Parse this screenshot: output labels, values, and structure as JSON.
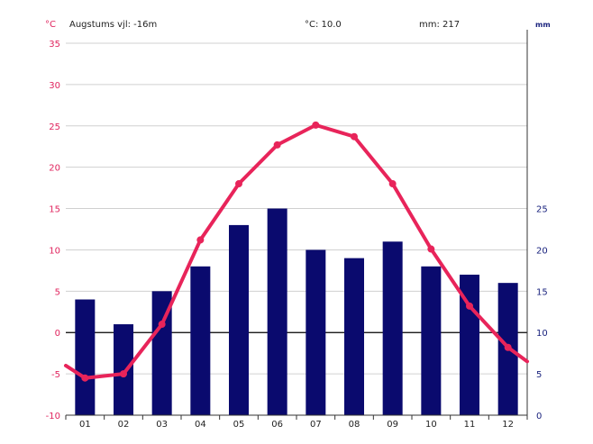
{
  "header": {
    "altitude": "Augstums vjl: -16m",
    "temp_avg": "°C: 10.0",
    "precip_total": "mm: 217",
    "unit_temp": "°C",
    "unit_precip": "mm"
  },
  "chart_data": {
    "type": "bar+line",
    "categories": [
      "01",
      "02",
      "03",
      "04",
      "05",
      "06",
      "07",
      "08",
      "09",
      "10",
      "11",
      "12"
    ],
    "series": [
      {
        "axis": "right",
        "unit": "mm",
        "kind": "bar",
        "color": "#0a0a6e",
        "values": [
          14,
          11,
          15,
          18,
          23,
          25,
          20,
          19,
          21,
          18,
          17,
          16
        ]
      },
      {
        "axis": "left",
        "unit": "°C",
        "kind": "line",
        "color": "#e8245a",
        "values": [
          -5.5,
          -5.0,
          1.0,
          11.2,
          18.0,
          22.7,
          25.1,
          23.7,
          18.0,
          10.1,
          3.2,
          -1.8
        ],
        "start_value": -4.0,
        "end_value": -3.5
      }
    ],
    "y_left": {
      "min": -10,
      "max": 35,
      "ticks": [
        -10,
        -5,
        0,
        5,
        10,
        15,
        20,
        25,
        30,
        35
      ]
    },
    "y_right": {
      "min": 0,
      "max": 25,
      "ticks": [
        0,
        5,
        10,
        15,
        20,
        25
      ]
    },
    "grid": true
  }
}
